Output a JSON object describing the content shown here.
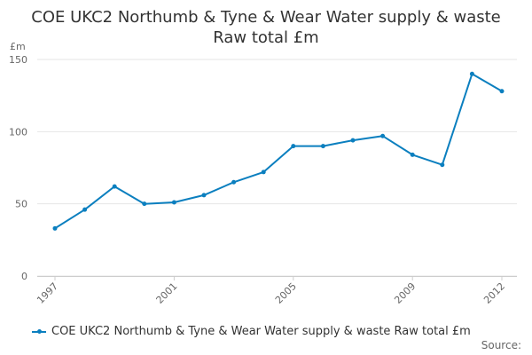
{
  "colors": {
    "series": "#0b7fbf",
    "grid": "#e6e6e6",
    "axis_text": "#666666",
    "title_text": "#333333"
  },
  "source_label": "Source:",
  "chart_data": {
    "type": "line",
    "title": "COE UKC2 Northumb & Tyne & Wear Water supply & waste",
    "subtitle": "Raw total £m",
    "ylabel": "£m",
    "xlabel": "",
    "ylim": [
      0,
      150
    ],
    "yticks": [
      0,
      50,
      100,
      150
    ],
    "xlim": [
      1997,
      2012
    ],
    "xticks": [
      1997,
      2001,
      2005,
      2009,
      2012
    ],
    "grid": "horizontal",
    "legend": "bottom",
    "series": [
      {
        "name": "COE UKC2 Northumb & Tyne & Wear Water supply & waste Raw total £m",
        "x": [
          1997,
          1998,
          1999,
          2000,
          2001,
          2002,
          2003,
          2004,
          2005,
          2006,
          2007,
          2008,
          2009,
          2010,
          2011,
          2012
        ],
        "values": [
          33,
          46,
          62,
          50,
          51,
          56,
          65,
          72,
          90,
          90,
          94,
          97,
          84,
          77,
          140,
          128
        ]
      }
    ]
  }
}
